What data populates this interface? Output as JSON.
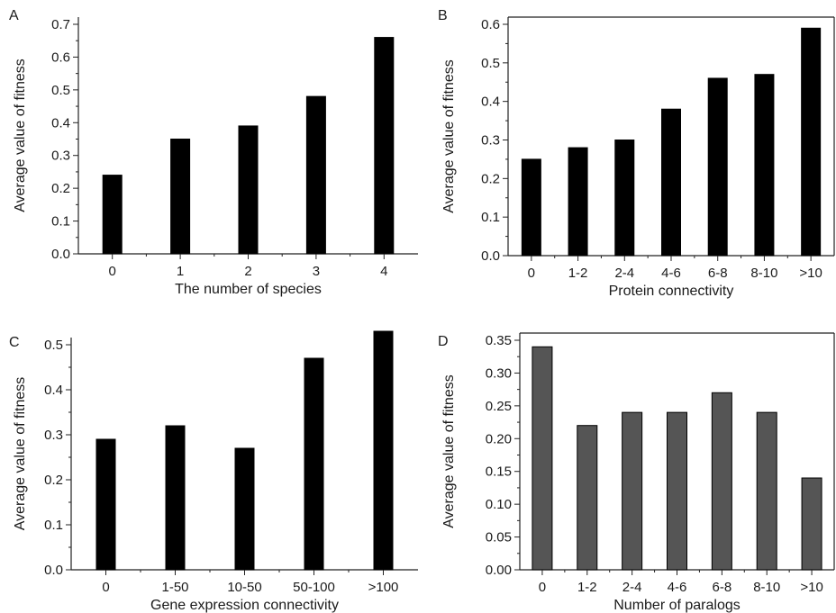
{
  "chart_data": [
    {
      "type": "bar",
      "panel_label": "A",
      "categories": [
        "0",
        "1",
        "2",
        "3",
        "4"
      ],
      "values": [
        0.24,
        0.35,
        0.39,
        0.48,
        0.66
      ],
      "xlabel": "The number of species",
      "ylabel": "Average value of fitness",
      "ylim": [
        0,
        0.7
      ],
      "yticks": [
        "0.0",
        "0.1",
        "0.2",
        "0.3",
        "0.4",
        "0.5",
        "0.6",
        "0.7"
      ],
      "bar_color": "#000000",
      "grid": false
    },
    {
      "type": "bar",
      "panel_label": "B",
      "categories": [
        "0",
        "1-2",
        "2-4",
        "4-6",
        "6-8",
        "8-10",
        ">10"
      ],
      "values": [
        0.25,
        0.28,
        0.3,
        0.38,
        0.46,
        0.47,
        0.59
      ],
      "xlabel": "Protein connectivity",
      "ylabel": "Average value of fitness",
      "ylim": [
        0,
        0.6
      ],
      "yticks": [
        "0.0",
        "0.1",
        "0.2",
        "0.3",
        "0.4",
        "0.5",
        "0.6"
      ],
      "bar_color": "#000000",
      "grid": false
    },
    {
      "type": "bar",
      "panel_label": "C",
      "categories": [
        "0",
        "1-50",
        "10-50",
        "50-100",
        ">100"
      ],
      "values": [
        0.29,
        0.32,
        0.27,
        0.47,
        0.53
      ],
      "xlabel": "Gene expression connectivity",
      "ylabel": "Average value of fitness",
      "ylim": [
        0,
        0.5
      ],
      "yticks": [
        "0.0",
        "0.1",
        "0.2",
        "0.3",
        "0.4",
        "0.5"
      ],
      "bar_color": "#000000",
      "grid": false
    },
    {
      "type": "bar",
      "panel_label": "D",
      "categories": [
        "0",
        "1-2",
        "2-4",
        "4-6",
        "6-8",
        "8-10",
        ">10"
      ],
      "values": [
        0.34,
        0.22,
        0.24,
        0.24,
        0.27,
        0.24,
        0.14
      ],
      "xlabel": "Number of paralogs",
      "ylabel": "Average value of fitness",
      "ylim": [
        0,
        0.35
      ],
      "yticks": [
        "0.00",
        "0.05",
        "0.10",
        "0.15",
        "0.20",
        "0.25",
        "0.30",
        "0.35"
      ],
      "bar_color": "#555555",
      "grid": false
    }
  ]
}
